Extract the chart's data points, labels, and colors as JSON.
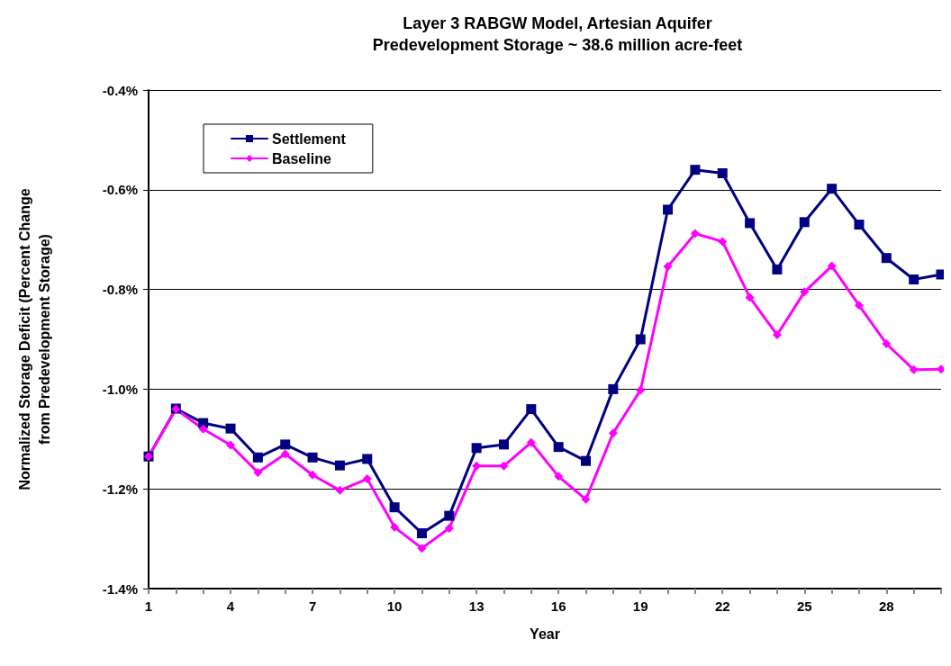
{
  "chart_data": {
    "type": "line",
    "title": "Layer 3 RABGW Model, Artesian Aquifer",
    "subtitle": "Predevelopment Storage ~ 38.6 million acre-feet",
    "xlabel": "Year",
    "ylabel": "Normalized Storage Deficit (Percent Change\nfrom Predevelopment Storage)",
    "categories": [
      "1",
      null,
      null,
      "4",
      null,
      null,
      "7",
      null,
      null,
      "10",
      null,
      null,
      "13",
      null,
      null,
      "16",
      null,
      null,
      "19",
      null,
      null,
      "22",
      null,
      null,
      "25",
      null,
      null,
      "28",
      null,
      null
    ],
    "series": [
      {
        "name": "Settlement",
        "color": "#000080",
        "marker": "square",
        "values": [
          -1.135,
          -1.039,
          -1.068,
          -1.079,
          -1.137,
          -1.111,
          -1.137,
          -1.153,
          -1.14,
          -1.237,
          -1.289,
          -1.254,
          -1.118,
          -1.111,
          -1.04,
          -1.116,
          -1.144,
          -1.0,
          -0.9,
          -0.64,
          -0.56,
          -0.567,
          -0.667,
          -0.76,
          -0.665,
          -0.598,
          -0.67,
          -0.737,
          -0.78,
          -0.77
        ]
      },
      {
        "name": "Baseline",
        "color": "#ff00ff",
        "marker": "diamond",
        "values": [
          -1.135,
          -1.04,
          -1.08,
          -1.112,
          -1.167,
          -1.13,
          -1.172,
          -1.203,
          -1.18,
          -1.277,
          -1.319,
          -1.279,
          -1.154,
          -1.154,
          -1.107,
          -1.175,
          -1.221,
          -1.088,
          -1.002,
          -0.754,
          -0.688,
          -0.704,
          -0.816,
          -0.891,
          -0.805,
          -0.753,
          -0.832,
          -0.909,
          -0.961,
          -0.96
        ]
      }
    ],
    "ylim": [
      -1.4,
      -0.4
    ],
    "yticks": [
      {
        "value": -1.4,
        "label": "-1.4%"
      },
      {
        "value": -1.2,
        "label": "-1.2%"
      },
      {
        "value": -1.0,
        "label": "-1.0%"
      },
      {
        "value": -0.8,
        "label": "-0.8%"
      },
      {
        "value": -0.6,
        "label": "-0.6%"
      },
      {
        "value": -0.4,
        "label": "-0.4%"
      }
    ],
    "grid": "y",
    "legend": "top left",
    "line_style": "solid"
  }
}
